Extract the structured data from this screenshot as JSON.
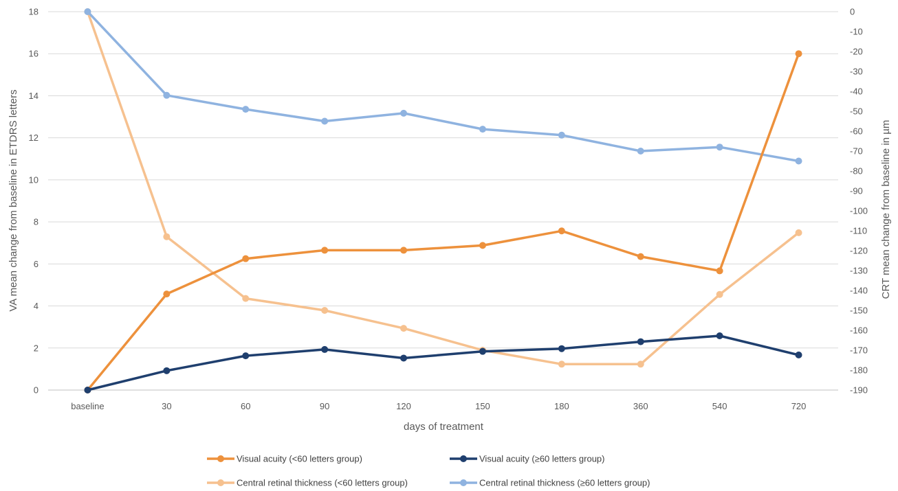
{
  "chart_data": {
    "type": "line",
    "categories": [
      "baseline",
      "30",
      "60",
      "90",
      "120",
      "150",
      "180",
      "360",
      "540",
      "720"
    ],
    "xlabel": "days of treatment",
    "ylabel_left": "VA mean change from baseline  in ETDRS letters",
    "ylabel_right": "CRT mean change from baseline in µm",
    "ylim_left": [
      0,
      18
    ],
    "yticks_left": [
      "0",
      "2",
      "4",
      "6",
      "8",
      "10",
      "12",
      "14",
      "16",
      "18"
    ],
    "ylim_right": [
      -190,
      0
    ],
    "yticks_right": [
      "0",
      "-10",
      "-20",
      "-30",
      "-40",
      "-50",
      "-60",
      "-70",
      "-80",
      "-90",
      "-100",
      "-110",
      "-120",
      "-130",
      "-140",
      "-150",
      "-160",
      "-170",
      "-180",
      "-190"
    ],
    "grid": true,
    "legend_position": "bottom",
    "series": [
      {
        "name": "Visual acuity (<60 letters group)",
        "axis": "left",
        "color": "#ED913C",
        "values": [
          0,
          4.57,
          6.25,
          6.65,
          6.65,
          6.88,
          7.57,
          6.35,
          5.67,
          16.0
        ]
      },
      {
        "name": "Visual acuity (≥60 letters group)",
        "axis": "left",
        "color": "#1F3F6E",
        "values": [
          0,
          0.92,
          1.63,
          1.93,
          1.52,
          1.84,
          1.97,
          2.3,
          2.58,
          1.67
        ]
      },
      {
        "name": "Central retinal thickness (<60 letters group)",
        "axis": "right",
        "color": "#F6C18F",
        "values": [
          0,
          -113,
          -144,
          -150,
          -159,
          -170,
          -177,
          -177,
          -142,
          -111
        ]
      },
      {
        "name": "Central retinal thickness (≥60 letters group)",
        "axis": "right",
        "color": "#8FB3E0",
        "values": [
          0,
          -42,
          -49,
          -55,
          -51,
          -59,
          -62,
          -70,
          -68,
          -75
        ]
      }
    ]
  }
}
